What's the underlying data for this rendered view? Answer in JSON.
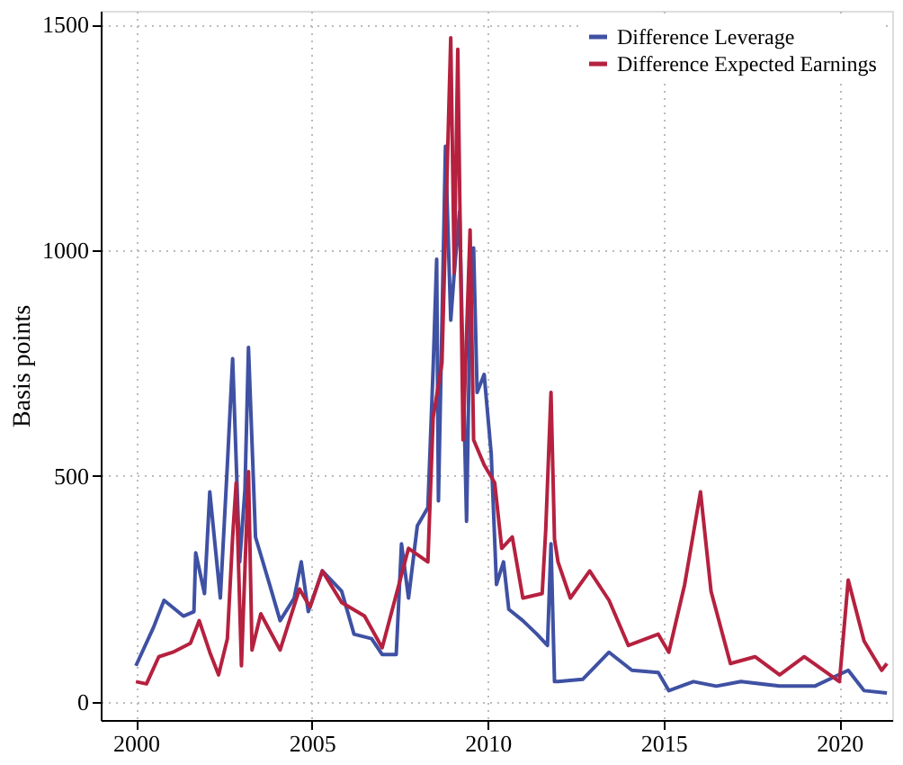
{
  "chart_data": {
    "type": "line",
    "ylabel": "Basis points",
    "xlim": [
      1999.0,
      2021.5
    ],
    "ylim": [
      -40,
      1530
    ],
    "xticks": [
      2000,
      2005,
      2010,
      2015,
      2020
    ],
    "yticks": [
      0,
      500,
      1000,
      1500
    ],
    "grid": true,
    "legend": "top right",
    "line_style": "solid",
    "marker": "none",
    "series": [
      {
        "name": "Difference Leverage",
        "color": "#3f51a3",
        "x": [
          2000.0,
          2000.5,
          2000.8,
          2001.35,
          2001.65,
          2001.7,
          2001.95,
          2002.1,
          2002.4,
          2002.6,
          2002.75,
          2002.95,
          2003.1,
          2003.2,
          2003.4,
          2003.8,
          2004.1,
          2004.5,
          2004.7,
          2004.9,
          2005.3,
          2005.85,
          2006.2,
          2006.7,
          2007.0,
          2007.4,
          2007.55,
          2007.75,
          2008.0,
          2008.3,
          2008.45,
          2008.55,
          2008.6,
          2008.8,
          2008.95,
          2009.05,
          2009.2,
          2009.4,
          2009.5,
          2009.6,
          2009.7,
          2009.9,
          2010.1,
          2010.25,
          2010.45,
          2010.6,
          2011.0,
          2011.4,
          2011.7,
          2011.8,
          2011.9,
          2012.0,
          2012.7,
          2013.45,
          2014.1,
          2014.85,
          2015.15,
          2015.85,
          2016.5,
          2017.2,
          2018.3,
          2019.3,
          2020.25,
          2020.7,
          2021.35
        ],
        "values": [
          80,
          165,
          225,
          190,
          200,
          330,
          240,
          465,
          230,
          525,
          760,
          310,
          470,
          785,
          365,
          260,
          180,
          230,
          310,
          200,
          290,
          245,
          150,
          140,
          105,
          105,
          350,
          230,
          390,
          430,
          740,
          980,
          445,
          1230,
          845,
          950,
          1085,
          400,
          870,
          1005,
          685,
          725,
          550,
          260,
          310,
          205,
          180,
          150,
          125,
          350,
          45,
          45,
          50,
          110,
          70,
          65,
          25,
          45,
          35,
          45,
          35,
          35,
          70,
          25,
          20
        ]
      },
      {
        "name": "Difference Expected Earnings",
        "color": "#b5213f",
        "x": [
          2000.0,
          2000.3,
          2000.65,
          2001.05,
          2001.55,
          2001.8,
          2002.1,
          2002.35,
          2002.6,
          2002.75,
          2002.85,
          2003.0,
          2003.2,
          2003.3,
          2003.55,
          2004.1,
          2004.65,
          2004.95,
          2005.3,
          2005.85,
          2006.5,
          2007.0,
          2007.75,
          2008.3,
          2008.45,
          2008.7,
          2008.95,
          2009.05,
          2009.15,
          2009.3,
          2009.5,
          2009.6,
          2009.9,
          2010.2,
          2010.4,
          2010.7,
          2011.0,
          2011.55,
          2011.65,
          2011.8,
          2011.9,
          2012.0,
          2012.35,
          2012.9,
          2013.45,
          2014.0,
          2014.85,
          2015.15,
          2015.6,
          2016.05,
          2016.35,
          2016.9,
          2017.6,
          2018.3,
          2019.0,
          2020.0,
          2020.25,
          2020.7,
          2021.2,
          2021.35
        ],
        "values": [
          45,
          40,
          100,
          110,
          130,
          180,
          110,
          60,
          140,
          365,
          485,
          80,
          510,
          115,
          195,
          115,
          250,
          210,
          290,
          220,
          190,
          120,
          340,
          310,
          630,
          750,
          1470,
          950,
          1445,
          580,
          1045,
          580,
          525,
          485,
          340,
          365,
          230,
          240,
          380,
          685,
          360,
          310,
          230,
          290,
          225,
          125,
          150,
          110,
          260,
          465,
          245,
          85,
          100,
          60,
          100,
          45,
          270,
          135,
          70,
          85
        ]
      }
    ]
  }
}
